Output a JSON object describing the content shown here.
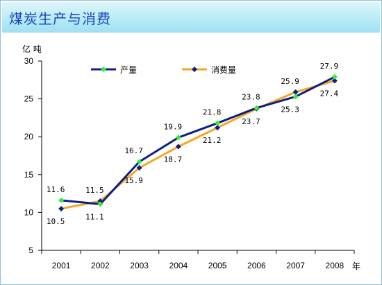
{
  "title": "煤炭生产与消费",
  "chart_data": {
    "type": "line",
    "x": [
      "2001",
      "2002",
      "2003",
      "2004",
      "2005",
      "2006",
      "2007",
      "2008"
    ],
    "x_unit": "年",
    "y_unit": "亿 吨",
    "ylim": [
      5,
      30
    ],
    "yticks": [
      5,
      10,
      15,
      20,
      25,
      30
    ],
    "grid": false,
    "legend_position": "top-left",
    "series": [
      {
        "name": "产量",
        "values": [
          11.6,
          11.1,
          16.7,
          19.9,
          21.8,
          23.8,
          25.3,
          27.9
        ],
        "labels": [
          "11.6",
          "11.1",
          "16.7",
          "19.9",
          "21.8",
          "23.8",
          "25.3",
          "27.9"
        ],
        "line_color": "#0b1f86",
        "marker_color": "#33ee33"
      },
      {
        "name": "消费量",
        "values": [
          10.5,
          11.5,
          15.9,
          18.7,
          21.2,
          23.7,
          25.9,
          27.4
        ],
        "labels": [
          "10.5",
          "11.5",
          "15.9",
          "18.7",
          "21.2",
          "23.7",
          "25.9",
          "27.4"
        ],
        "line_color": "#f6a623",
        "marker_color": "#0b1f86"
      }
    ]
  }
}
